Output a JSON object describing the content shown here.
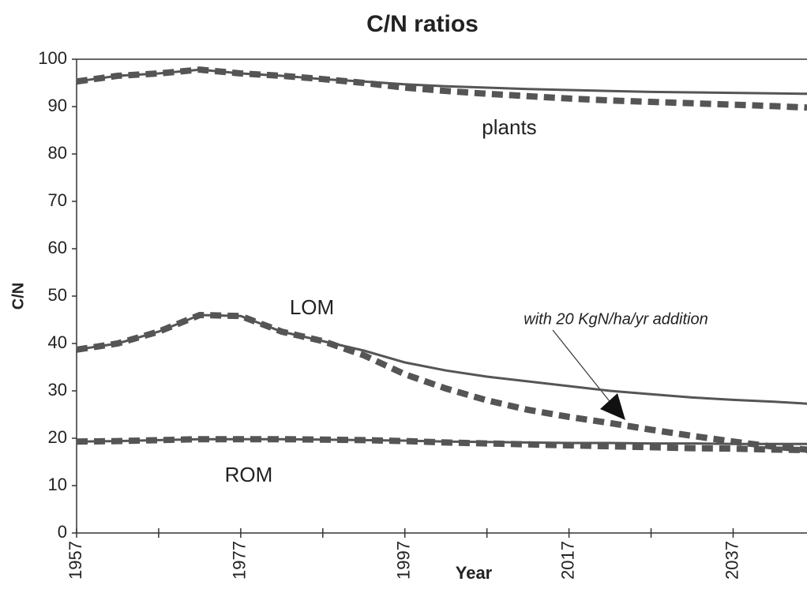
{
  "chart_data": {
    "type": "line",
    "title": "C/N ratios",
    "xlabel": "Year",
    "ylabel": "C/N",
    "annotations": [
      "plants",
      "LOM",
      "ROM",
      "with 20 KgN/ha/yr addition"
    ],
    "x": [
      1957,
      1962,
      1967,
      1972,
      1977,
      1982,
      1987,
      1992,
      1997,
      2002,
      2007,
      2012,
      2017,
      2022,
      2027,
      2032,
      2037,
      2042,
      2046
    ],
    "series": [
      {
        "color": "#555555",
        "dashed": false,
        "values": [
          95.3,
          96.5,
          97,
          97.8,
          97,
          96.5,
          95.8,
          95.3,
          94.7,
          94.3,
          94,
          93.7,
          93.5,
          93.3,
          93.1,
          93,
          92.9,
          92.8,
          92.7
        ]
      },
      {
        "color": "#555555",
        "dashed": true,
        "values": [
          95.3,
          96.5,
          97,
          97.8,
          97,
          96.5,
          95.8,
          95,
          94,
          93.3,
          92.7,
          92.2,
          91.7,
          91.3,
          91,
          90.7,
          90.4,
          90.1,
          89.8
        ]
      },
      {
        "color": "#555555",
        "dashed": false,
        "values": [
          38.7,
          40,
          42.5,
          46,
          45.8,
          42.5,
          40.5,
          38.5,
          36,
          34.3,
          33,
          32,
          31,
          30,
          29.3,
          28.6,
          28.1,
          27.7,
          27.3
        ]
      },
      {
        "color": "#555555",
        "dashed": true,
        "values": [
          38.7,
          40,
          42.5,
          46,
          45.8,
          42.5,
          40.5,
          37.5,
          33.5,
          30.5,
          28,
          26,
          24.5,
          23.2,
          21.8,
          20.5,
          19.3,
          18.2,
          17.6
        ]
      },
      {
        "color": "#555555",
        "dashed": false,
        "values": [
          19.3,
          19.4,
          19.6,
          19.8,
          19.8,
          19.8,
          19.7,
          19.6,
          19.5,
          19.3,
          19.2,
          19.1,
          19,
          19,
          18.9,
          18.9,
          18.8,
          18.8,
          18.8
        ]
      },
      {
        "color": "#555555",
        "dashed": true,
        "values": [
          19.3,
          19.4,
          19.6,
          19.8,
          19.8,
          19.8,
          19.7,
          19.6,
          19.4,
          19.1,
          18.9,
          18.7,
          18.5,
          18.3,
          18.1,
          17.9,
          17.8,
          17.6,
          17.5
        ]
      }
    ],
    "xlim": [
      1957,
      2046
    ],
    "xticks": [
      1957,
      1977,
      1997,
      2017,
      2037
    ],
    "xminorticks": [
      1967,
      1987,
      2007,
      2027
    ],
    "ylim": [
      0,
      100
    ],
    "yticks": [
      0,
      10,
      20,
      30,
      40,
      50,
      60,
      70,
      80,
      90,
      100
    ],
    "grid": false
  }
}
